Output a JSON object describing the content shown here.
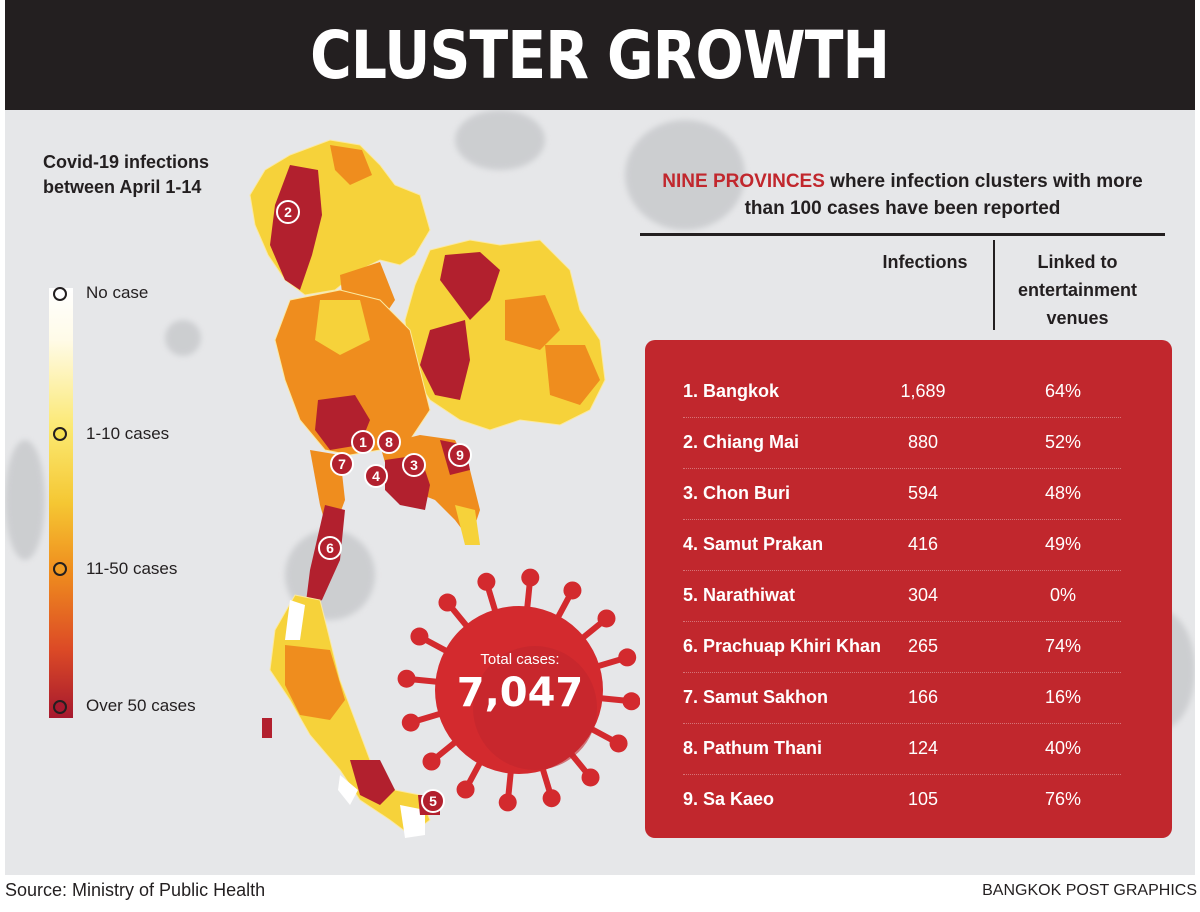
{
  "header": {
    "title": "CLUSTER GROWTH"
  },
  "legend": {
    "title_line1": "Covid-19 infections",
    "title_line2": "between April 1-14",
    "levels": [
      {
        "label": "No case",
        "color": "#ffffff"
      },
      {
        "label": "1-10 cases",
        "color": "#f6d23a"
      },
      {
        "label": "11-50 cases",
        "color": "#ef8d1e"
      },
      {
        "label": "Over 50 cases",
        "color": "#b2202e"
      }
    ]
  },
  "map": {
    "markers": [
      "1",
      "2",
      "3",
      "4",
      "5",
      "6",
      "7",
      "8",
      "9"
    ],
    "total_label": "Total cases:",
    "total_value": "7,047"
  },
  "table": {
    "headline_highlight": "NINE PROVINCES",
    "headline_rest_line1": "where infection clusters with more",
    "headline_line2": "than 100 cases have been reported",
    "col_infections": "Infections",
    "col_linked_line1": "Linked to",
    "col_linked_line2": "entertainment",
    "col_linked_line3": "venues",
    "rows": [
      {
        "province": "1. Bangkok",
        "infections": "1,689",
        "linked": "64%"
      },
      {
        "province": "2. Chiang Mai",
        "infections": "880",
        "linked": "52%"
      },
      {
        "province": "3. Chon Buri",
        "infections": "594",
        "linked": "48%"
      },
      {
        "province": "4. Samut Prakan",
        "infections": "416",
        "linked": "49%"
      },
      {
        "province": "5. Narathiwat",
        "infections": "304",
        "linked": "0%"
      },
      {
        "province": "6. Prachuap Khiri Khan",
        "infections": "265",
        "linked": "74%"
      },
      {
        "province": "7. Samut Sakhon",
        "infections": "166",
        "linked": "16%"
      },
      {
        "province": "8. Pathum Thani",
        "infections": "124",
        "linked": "40%"
      },
      {
        "province": "9. Sa Kaeo",
        "infections": "105",
        "linked": "76%"
      }
    ]
  },
  "footer": {
    "source": "Source: Ministry of Public Health",
    "credit": "BANGKOK POST GRAPHICS"
  },
  "colors": {
    "header_bg": "#231f20",
    "panel_bg": "#e6e7e9",
    "accent_red": "#c1272d",
    "dark_red": "#b2202e",
    "orange": "#ef8d1e",
    "yellow": "#f6d23a"
  }
}
